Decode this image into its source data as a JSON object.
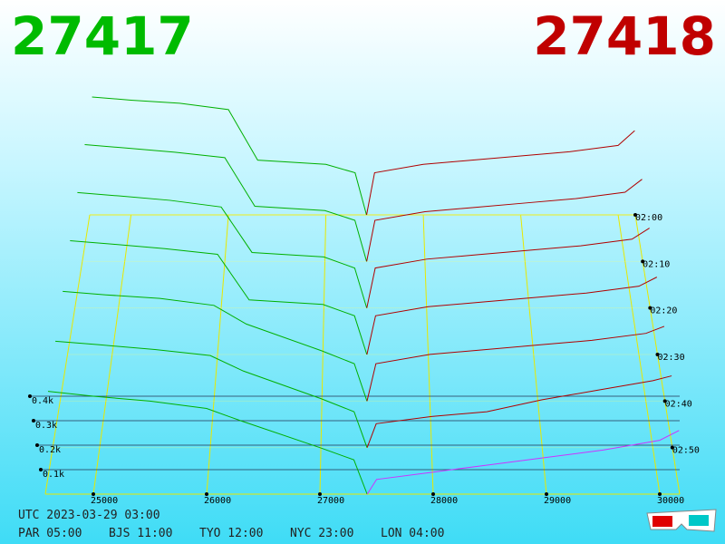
{
  "chart_data": {
    "type": "depth3d",
    "best_bid": 27417,
    "best_ask": 27418,
    "bid_color": "#00b000",
    "ask_color": "#b00000",
    "front_ask_color": "#cc33ff",
    "xlim": [
      24576,
      30176
    ],
    "xticks": [
      25000,
      26000,
      27000,
      28000,
      29000,
      30000
    ],
    "ylim": [
      0,
      400
    ],
    "yticks": [
      {
        "value": 100,
        "label": "0.1k"
      },
      {
        "value": 200,
        "label": "0.2k"
      },
      {
        "value": 300,
        "label": "0.3k"
      },
      {
        "value": 400,
        "label": "0.4k"
      }
    ],
    "zlim": [
      0,
      60
    ],
    "zticks": [
      {
        "value": 0,
        "label": "02:00"
      },
      {
        "value": 10,
        "label": "02:10"
      },
      {
        "value": 20,
        "label": "02:20"
      },
      {
        "value": 30,
        "label": "02:30"
      },
      {
        "value": 40,
        "label": "02:40"
      },
      {
        "value": 50,
        "label": "02:50"
      }
    ],
    "bid_prices": [
      24600,
      25000,
      25500,
      26000,
      26300,
      27000,
      27300,
      27417
    ],
    "ask_prices": [
      27418,
      27500,
      28000,
      28500,
      29000,
      29500,
      30000,
      30170
    ],
    "slices": [
      {
        "t": 0,
        "bids": [
          560,
          545,
          530,
          500,
          260,
          240,
          200,
          0
        ],
        "asks": [
          0,
          200,
          240,
          260,
          280,
          300,
          330,
          400
        ]
      },
      {
        "t": 10,
        "bids": [
          540,
          525,
          505,
          480,
          255,
          235,
          190,
          0
        ],
        "asks": [
          0,
          190,
          230,
          250,
          270,
          290,
          320,
          380
        ]
      },
      {
        "t": 20,
        "bids": [
          520,
          505,
          485,
          455,
          250,
          230,
          180,
          0
        ],
        "asks": [
          0,
          180,
          220,
          240,
          260,
          280,
          310,
          360
        ]
      },
      {
        "t": 30,
        "bids": [
          500,
          485,
          465,
          440,
          240,
          220,
          170,
          0
        ],
        "asks": [
          0,
          170,
          210,
          230,
          250,
          270,
          300,
          340
        ]
      },
      {
        "t": 40,
        "bids": [
          470,
          455,
          440,
          410,
          330,
          215,
          160,
          0
        ],
        "asks": [
          0,
          160,
          200,
          220,
          240,
          260,
          290,
          320
        ]
      },
      {
        "t": 50,
        "bids": [
          445,
          430,
          410,
          385,
          320,
          205,
          150,
          0
        ],
        "asks": [
          0,
          100,
          130,
          150,
          200,
          240,
          280,
          300
        ]
      },
      {
        "t": 60,
        "bids": [
          420,
          400,
          380,
          350,
          300,
          190,
          140,
          0
        ],
        "asks": [
          0,
          60,
          90,
          120,
          150,
          180,
          220,
          260
        ]
      }
    ],
    "timestamp": "UTC 2023-03-29 03:00",
    "clocks": [
      "PAR 05:00",
      "BJS 11:00",
      "TYO 12:00",
      "NYC 23:00",
      "LON 04:00"
    ]
  }
}
